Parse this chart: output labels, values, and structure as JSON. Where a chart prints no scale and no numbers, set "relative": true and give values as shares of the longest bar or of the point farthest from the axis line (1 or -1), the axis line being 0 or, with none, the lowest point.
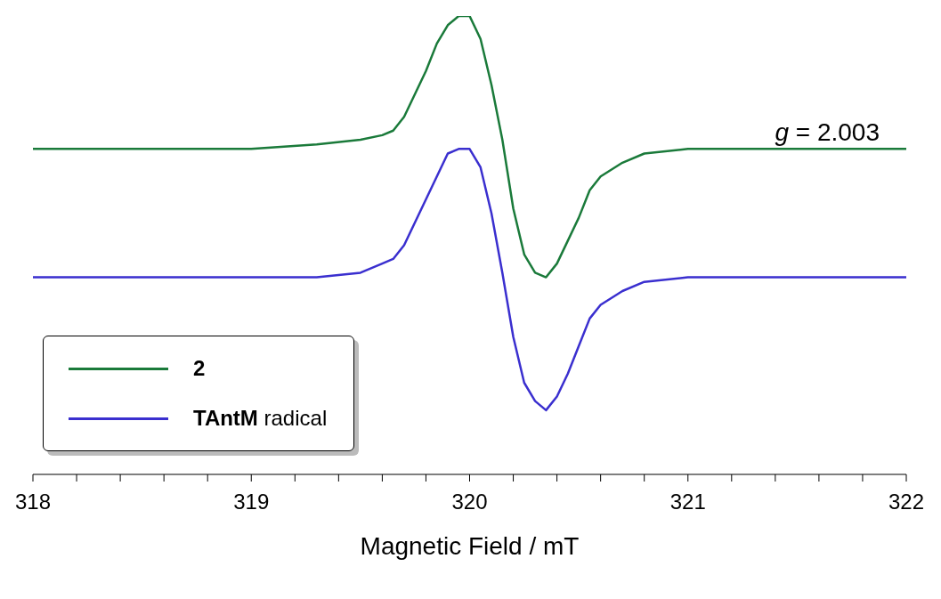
{
  "chart_data": {
    "type": "line",
    "relative": true,
    "xlabel": "Magnetic Field / mT",
    "x": [
      318,
      319,
      319.3,
      319.5,
      319.6,
      319.65,
      319.7,
      319.75,
      319.8,
      319.85,
      319.9,
      319.95,
      320,
      320.05,
      320.1,
      320.15,
      320.2,
      320.25,
      320.3,
      320.35,
      320.4,
      320.45,
      320.5,
      320.55,
      320.6,
      320.7,
      320.8,
      321,
      321.2,
      322
    ],
    "series": [
      {
        "name": "2",
        "color": "#1a7a3a",
        "values": [
          0.71,
          0.71,
          0.72,
          0.73,
          0.74,
          0.75,
          0.78,
          0.83,
          0.88,
          0.94,
          0.98,
          1.0,
          1.0,
          0.95,
          0.85,
          0.73,
          0.58,
          0.48,
          0.44,
          0.43,
          0.46,
          0.51,
          0.56,
          0.62,
          0.65,
          0.68,
          0.7,
          0.71,
          0.71,
          0.71
        ]
      },
      {
        "name": "TAntM radical",
        "color": "#3a2fcf",
        "values": [
          0.43,
          0.43,
          0.43,
          0.44,
          0.46,
          0.47,
          0.5,
          0.55,
          0.6,
          0.65,
          0.7,
          0.71,
          0.71,
          0.67,
          0.57,
          0.44,
          0.3,
          0.2,
          0.16,
          0.14,
          0.17,
          0.22,
          0.28,
          0.34,
          0.37,
          0.4,
          0.42,
          0.43,
          0.43,
          0.43
        ]
      }
    ],
    "xlim": [
      318,
      322
    ],
    "xticks": [
      318,
      {
        "value": 318.2,
        "label": null
      },
      {
        "value": 318.4,
        "label": null
      },
      {
        "value": 318.6,
        "label": null
      },
      {
        "value": 318.8,
        "label": null
      },
      319,
      {
        "value": 319.2,
        "label": null
      },
      {
        "value": 319.4,
        "label": null
      },
      {
        "value": 319.6,
        "label": null
      },
      {
        "value": 319.8,
        "label": null
      },
      320,
      {
        "value": 320.2,
        "label": null
      },
      {
        "value": 320.4,
        "label": null
      },
      {
        "value": 320.6,
        "label": null
      },
      {
        "value": 320.8,
        "label": null
      },
      321,
      {
        "value": 321.2,
        "label": null
      },
      {
        "value": 321.4,
        "label": null
      },
      {
        "value": 321.6,
        "label": null
      },
      {
        "value": 321.8,
        "label": null
      },
      322
    ],
    "annotations": [
      "g = 2.003"
    ],
    "legend": "bottom left",
    "grid": false,
    "marker": "none",
    "line_style": "solid"
  }
}
